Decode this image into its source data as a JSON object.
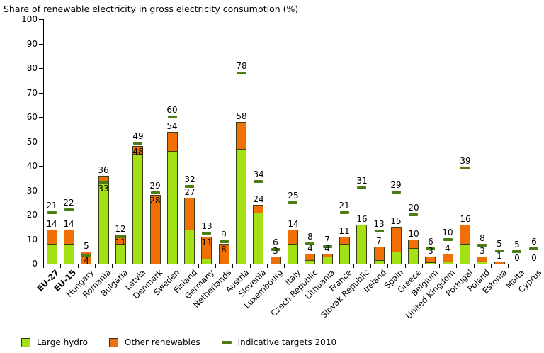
{
  "chart_data": {
    "type": "bar",
    "stacked": true,
    "title": "Share of renewable electricity in gross electricity consumption (%)",
    "xlabel": "",
    "ylabel": "",
    "ylim": [
      0,
      100
    ],
    "ytick_step": 10,
    "grid": false,
    "legend_position": "bottom",
    "colors": {
      "large_hydro": "#A3E014",
      "other_renewables": "#F07005",
      "indicative_target": "#4B7E15",
      "axis": "#000000",
      "bar_border": "#3D3D1A"
    },
    "legend": [
      {
        "label": "Large hydro",
        "color": "#A3E014",
        "style": "square"
      },
      {
        "label": "Other renewables",
        "color": "#F07005",
        "style": "square"
      },
      {
        "label": "Indicative targets 2010",
        "color": "#4B7E15",
        "style": "dash"
      }
    ],
    "series_names": [
      "Large hydro",
      "Other renewables"
    ],
    "bars": [
      {
        "country": "EU-27",
        "bold": true,
        "hydro": 8,
        "other": 6,
        "total": 14,
        "total_label": "14",
        "total_label_pos": "above",
        "target": 21,
        "target_label": "21",
        "target_label_pos": "above"
      },
      {
        "country": "EU-15",
        "bold": true,
        "hydro": 8,
        "other": 6,
        "total": 14,
        "total_label": "14",
        "total_label_pos": "above",
        "target": 22,
        "target_label": "22",
        "target_label_pos": "above"
      },
      {
        "country": "Hungary",
        "hydro": 0,
        "other": 5,
        "total": 5,
        "total_label": "5",
        "total_label_pos": "above",
        "target": 3.6,
        "target_label": "4",
        "target_label_pos": "inside"
      },
      {
        "country": "Romania",
        "hydro": 34,
        "other": 2,
        "total": 36,
        "total_label": "36",
        "total_label_pos": "above",
        "target": 33,
        "target_label": "33",
        "target_label_pos": "inside"
      },
      {
        "country": "Bulgaria",
        "hydro": 8,
        "other": 4,
        "total": 12,
        "total_label": "12",
        "total_label_pos": "above",
        "target": 11,
        "target_label": "11",
        "target_label_pos": "inside"
      },
      {
        "country": "Latvia",
        "hydro": 45,
        "other": 3,
        "total": 48,
        "total_label": "48",
        "total_label_pos": "inside",
        "target": 49.3,
        "target_label": "49",
        "target_label_pos": "above"
      },
      {
        "country": "Denmark",
        "hydro": 0,
        "other": 28,
        "total": 28,
        "total_label": "28",
        "total_label_pos": "inside",
        "target": 29,
        "target_label": "29",
        "target_label_pos": "above"
      },
      {
        "country": "Sweden",
        "hydro": 46,
        "other": 8,
        "total": 54,
        "total_label": "54",
        "total_label_pos": "above",
        "target": 60,
        "target_label": "60",
        "target_label_pos": "above"
      },
      {
        "country": "Finland",
        "hydro": 14,
        "other": 13,
        "total": 27,
        "total_label": "27",
        "total_label_pos": "above",
        "target": 31.5,
        "target_label": "32",
        "target_label_pos": "above"
      },
      {
        "country": "Germany",
        "hydro": 2,
        "other": 9,
        "total": 11,
        "total_label": "11",
        "total_label_pos": "inside",
        "target": 12.5,
        "target_label": "13",
        "target_label_pos": "above"
      },
      {
        "country": "Netherlands",
        "hydro": 0,
        "other": 8,
        "total": 8,
        "total_label": "8",
        "total_label_pos": "inside",
        "target": 9,
        "target_label": "9",
        "target_label_pos": "above"
      },
      {
        "country": "Austria",
        "hydro": 47,
        "other": 11,
        "total": 58,
        "total_label": "58",
        "total_label_pos": "above",
        "target": 78.1,
        "target_label": "78",
        "target_label_pos": "above"
      },
      {
        "country": "Slovenia",
        "hydro": 21,
        "other": 3,
        "total": 24,
        "total_label": "24",
        "total_label_pos": "above",
        "target": 33.6,
        "target_label": "34",
        "target_label_pos": "above"
      },
      {
        "country": "Luxembourg",
        "hydro": 0,
        "other": 3,
        "total": 3,
        "total_label": "3",
        "total_label_pos": "above",
        "target": 5.7,
        "target_label": "6",
        "target_label_pos": "above"
      },
      {
        "country": "Italy",
        "hydro": 8,
        "other": 6,
        "total": 14,
        "total_label": "14",
        "total_label_pos": "above",
        "target": 25,
        "target_label": "25",
        "target_label_pos": "above"
      },
      {
        "country": "Czech Republic",
        "hydro": 1.5,
        "other": 2.5,
        "total": 4,
        "total_label": "4",
        "total_label_pos": "above",
        "target": 8,
        "target_label": "8",
        "target_label_pos": "above"
      },
      {
        "country": "Lithuania",
        "hydro": 3,
        "other": 1,
        "total": 4,
        "total_label": "4",
        "total_label_pos": "above",
        "target": 7,
        "target_label": "7",
        "target_label_pos": "above"
      },
      {
        "country": "France",
        "hydro": 8,
        "other": 3,
        "total": 11,
        "total_label": "11",
        "total_label_pos": "above",
        "target": 21,
        "target_label": "21",
        "target_label_pos": "above"
      },
      {
        "country": "Slovak Republic",
        "hydro": 16,
        "other": 0,
        "total": 16,
        "total_label": "16",
        "total_label_pos": "above",
        "target": 31,
        "target_label": "31",
        "target_label_pos": "above"
      },
      {
        "country": "Ireland",
        "hydro": 1.5,
        "other": 5.5,
        "total": 7,
        "total_label": "7",
        "total_label_pos": "above",
        "target": 13.2,
        "target_label": "13",
        "target_label_pos": "above"
      },
      {
        "country": "Spain",
        "hydro": 5,
        "other": 10,
        "total": 15,
        "total_label": "15",
        "total_label_pos": "above",
        "target": 29.4,
        "target_label": "29",
        "target_label_pos": "above"
      },
      {
        "country": "Greece",
        "hydro": 6.5,
        "other": 3.5,
        "total": 10,
        "total_label": "10",
        "total_label_pos": "above",
        "target": 20.1,
        "target_label": "20",
        "target_label_pos": "above"
      },
      {
        "country": "Belgium",
        "hydro": 0.5,
        "other": 2.5,
        "total": 3,
        "total_label": "3",
        "total_label_pos": "above",
        "target": 6,
        "target_label": "6",
        "target_label_pos": "above"
      },
      {
        "country": "United Kingdom",
        "hydro": 1,
        "other": 3,
        "total": 4,
        "total_label": "4",
        "total_label_pos": "above",
        "target": 10,
        "target_label": "10",
        "target_label_pos": "above"
      },
      {
        "country": "Portugal",
        "hydro": 8,
        "other": 8,
        "total": 16,
        "total_label": "16",
        "total_label_pos": "above",
        "target": 39,
        "target_label": "39",
        "target_label_pos": "above"
      },
      {
        "country": "Poland",
        "hydro": 1,
        "other": 2,
        "total": 3,
        "total_label": "3",
        "total_label_pos": "above",
        "target": 7.5,
        "target_label": "8",
        "target_label_pos": "above"
      },
      {
        "country": "Estonia",
        "hydro": 0,
        "other": 1,
        "total": 1,
        "total_label": "1",
        "total_label_pos": "above",
        "target": 5.1,
        "target_label": "5",
        "target_label_pos": "above"
      },
      {
        "country": "Malta",
        "hydro": 0,
        "other": 0,
        "total": 0,
        "total_label": "0",
        "total_label_pos": "above",
        "target": 5,
        "target_label": "5",
        "target_label_pos": "above"
      },
      {
        "country": "Cyprus",
        "hydro": 0,
        "other": 0,
        "total": 0,
        "total_label": "0",
        "total_label_pos": "above",
        "target": 6,
        "target_label": "6",
        "target_label_pos": "above"
      }
    ]
  }
}
